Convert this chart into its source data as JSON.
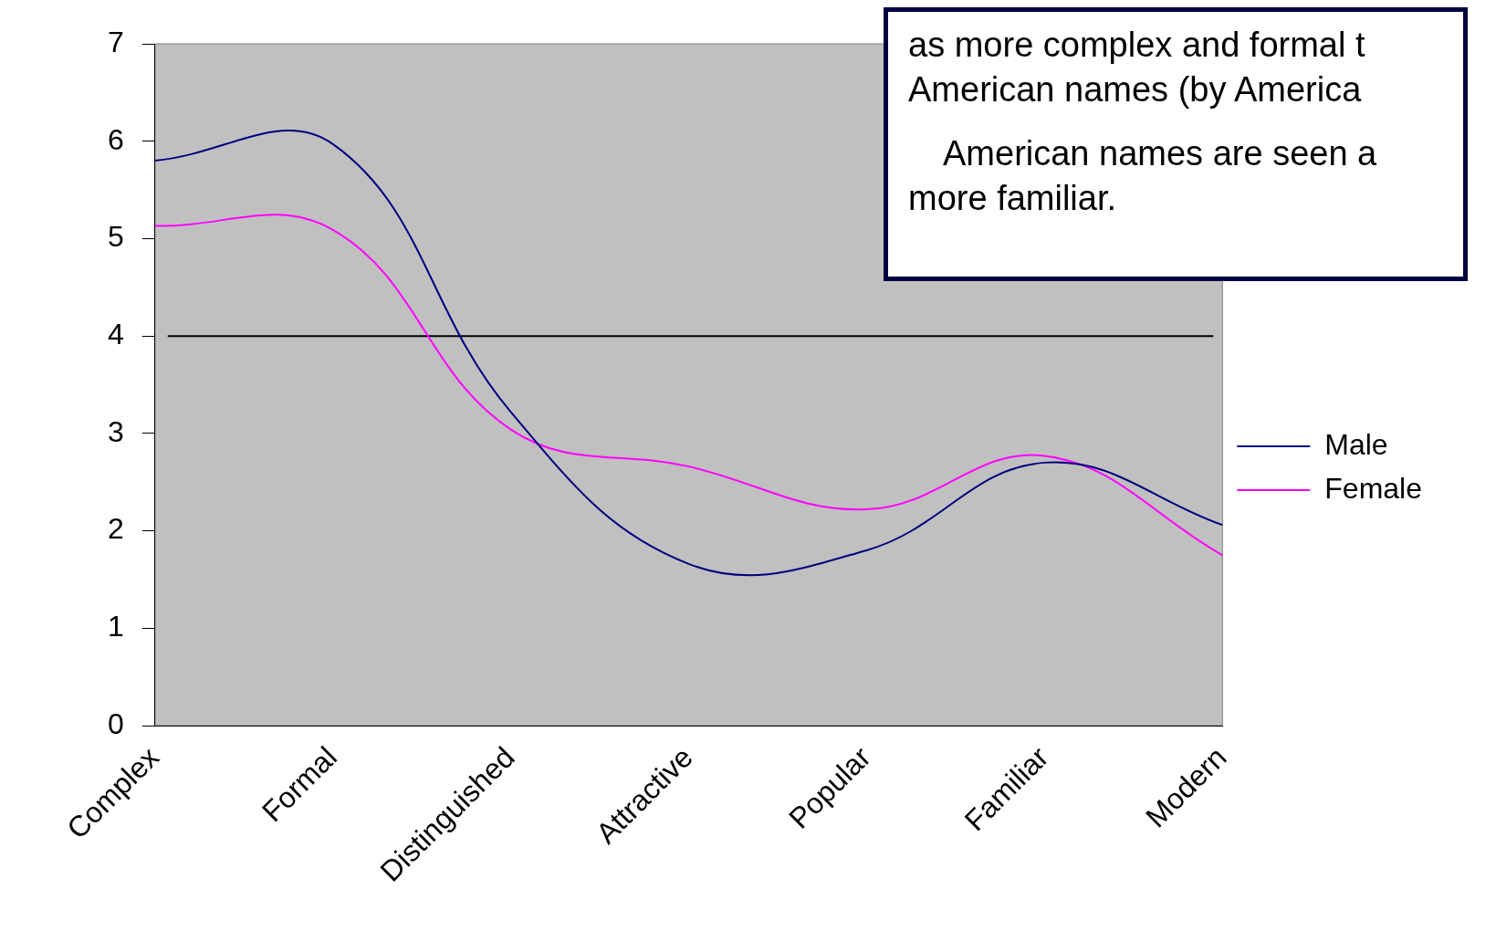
{
  "chart_data": {
    "type": "line",
    "categories": [
      "Complex",
      "Formal",
      "Distinguished",
      "Attractive",
      "Popular",
      "Familiar",
      "Modern"
    ],
    "series": [
      {
        "name": "Male",
        "color": "#000080",
        "values": [
          5.8,
          5.97,
          3.22,
          1.66,
          1.8,
          2.7,
          2.06
        ]
      },
      {
        "name": "Female",
        "color": "#ff00ff",
        "values": [
          5.13,
          5.09,
          3.04,
          2.66,
          2.22,
          2.77,
          1.75
        ]
      }
    ],
    "ylim": [
      0,
      7
    ],
    "yticks": [
      0,
      1,
      2,
      3,
      4,
      5,
      6,
      7
    ],
    "grid": false,
    "legend": "right",
    "marker": "none",
    "line_style": "solid",
    "ref_lines": [
      {
        "axis": "y",
        "value": 4,
        "color": "#000000"
      }
    ],
    "annotations": [
      "as more complex and formal t\nAmerican names (by America",
      "American names are seen a\nmore familiar."
    ]
  }
}
